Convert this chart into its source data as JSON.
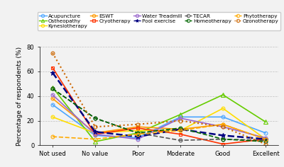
{
  "x_labels": [
    "Not used",
    "No value",
    "Poor",
    "Moderate",
    "Good",
    "Excellent"
  ],
  "series": [
    {
      "name": "Acupuncture",
      "color": "#4da6ff",
      "marker": "o",
      "linestyle": "-",
      "markersize": 3.5,
      "linewidth": 1.2,
      "values": [
        33,
        8,
        6,
        23,
        23,
        10
      ]
    },
    {
      "name": "Ostheopathy",
      "color": "#66cc00",
      "marker": "^",
      "linestyle": "-",
      "markersize": 4,
      "linewidth": 1.2,
      "values": [
        47,
        3,
        10,
        25,
        41,
        19
      ]
    },
    {
      "name": "Kynesiotherapy",
      "color": "#ffdd00",
      "marker": "o",
      "linestyle": "-",
      "markersize": 3.5,
      "linewidth": 1.2,
      "values": [
        23,
        10,
        12,
        12,
        30,
        5
      ]
    },
    {
      "name": "ESWT",
      "color": "#ff9900",
      "marker": "o",
      "linestyle": "-",
      "markersize": 3.5,
      "linewidth": 1.2,
      "values": [
        38,
        10,
        15,
        13,
        17,
        5
      ]
    },
    {
      "name": "Cryotherapy",
      "color": "#ff3300",
      "marker": "s",
      "linestyle": "-",
      "markersize": 3.5,
      "linewidth": 1.2,
      "values": [
        63,
        9,
        14,
        9,
        1,
        5
      ]
    },
    {
      "name": "Water Treadmill",
      "color": "#9966cc",
      "marker": "o",
      "linestyle": "-",
      "markersize": 3.5,
      "linewidth": 1.2,
      "values": [
        41,
        9,
        5,
        22,
        15,
        6
      ]
    },
    {
      "name": "Pool exercise",
      "color": "#000080",
      "marker": "*",
      "linestyle": "--",
      "markersize": 5,
      "linewidth": 1.8,
      "values": [
        59,
        11,
        7,
        13,
        8,
        5
      ]
    },
    {
      "name": "TECAR",
      "color": "#555555",
      "marker": "o",
      "linestyle": "--",
      "markersize": 3.5,
      "linewidth": 1.2,
      "values": [
        46,
        22,
        10,
        4,
        5,
        4
      ]
    },
    {
      "name": "Homeotherapy",
      "color": "#006600",
      "marker": "o",
      "linestyle": "--",
      "markersize": 3.5,
      "linewidth": 1.2,
      "values": [
        46,
        22,
        10,
        14,
        5,
        3
      ]
    },
    {
      "name": "Phytotherapy",
      "color": "#ffaa00",
      "marker": "o",
      "linestyle": "--",
      "markersize": 3.5,
      "linewidth": 1.2,
      "values": [
        7,
        5,
        9,
        12,
        17,
        5
      ]
    },
    {
      "name": "Ozonotherapy",
      "color": "#cc6600",
      "marker": "o",
      "linestyle": ":",
      "markersize": 3.5,
      "linewidth": 1.5,
      "values": [
        75,
        15,
        17,
        20,
        15,
        1
      ]
    }
  ],
  "ylabel": "Percentage of respondents (%)",
  "ylim": [
    0,
    80
  ],
  "yticks": [
    0,
    20,
    40,
    60,
    80
  ],
  "background_color": "#f2f2f2",
  "legend_fontsize": 5.2,
  "axis_fontsize": 6.5,
  "tick_fontsize": 6.0
}
